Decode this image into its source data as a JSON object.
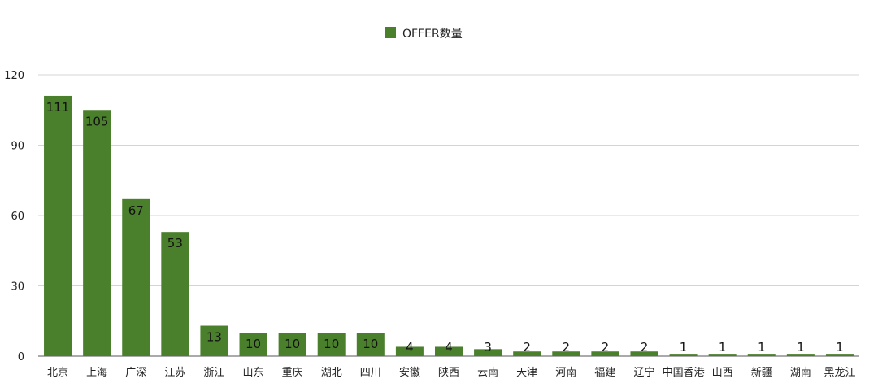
{
  "chart_data": {
    "type": "bar",
    "title": "",
    "xlabel": "",
    "ylabel": "",
    "legend": {
      "entries": [
        "OFFER数量"
      ],
      "placement": "top-center"
    },
    "categories": [
      "北京",
      "上海",
      "广深",
      "江苏",
      "浙江",
      "山东",
      "重庆",
      "湖北",
      "四川",
      "安徽",
      "陕西",
      "云南",
      "天津",
      "河南",
      "福建",
      "辽宁",
      "中国香港",
      "山西",
      "新疆",
      "湖南",
      "黑龙江"
    ],
    "series": [
      {
        "name": "OFFER数量",
        "color": "#4a7f2c",
        "values": [
          111,
          105,
          67,
          53,
          13,
          10,
          10,
          10,
          10,
          4,
          4,
          3,
          2,
          2,
          2,
          2,
          1,
          1,
          1,
          1,
          1
        ]
      }
    ],
    "ylim": [
      0,
      120
    ],
    "yticks": [
      0,
      30,
      60,
      90,
      120
    ],
    "grid": true,
    "data_labels": true
  }
}
